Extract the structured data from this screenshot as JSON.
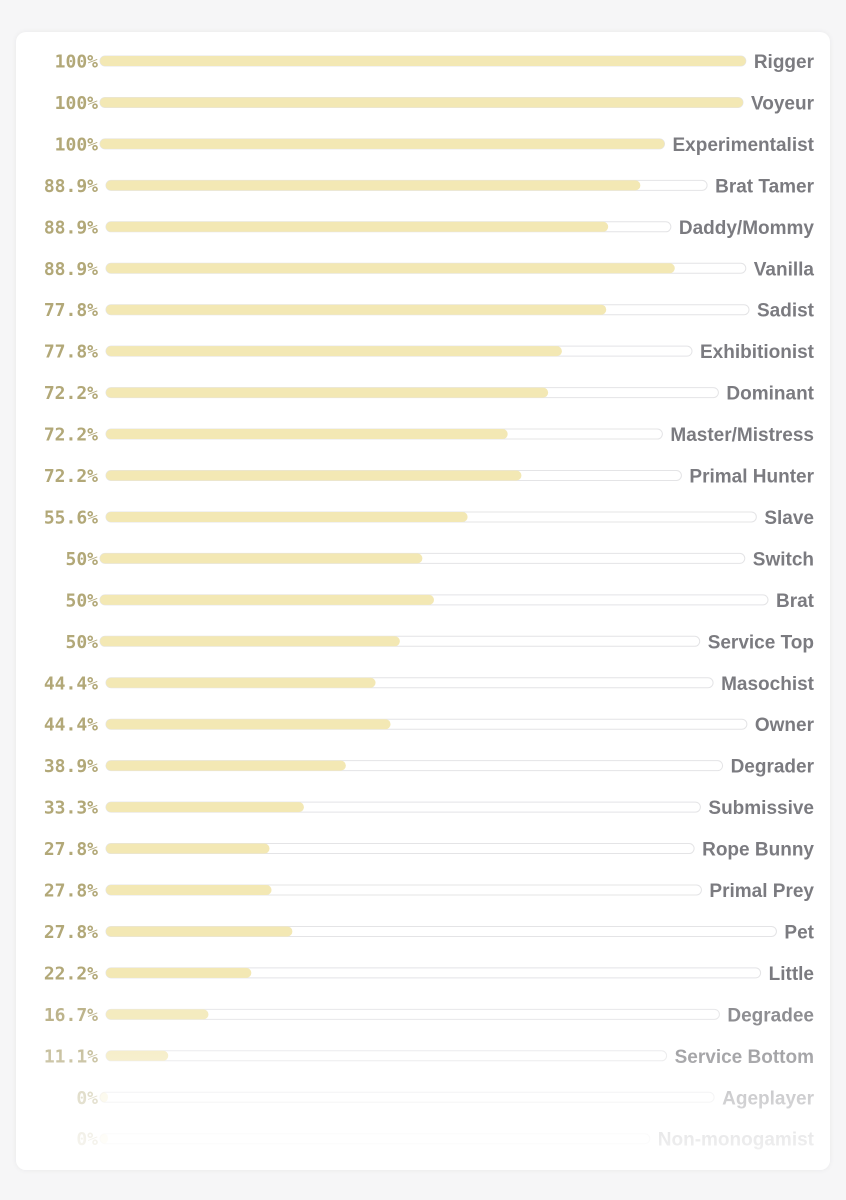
{
  "chart_data": {
    "type": "bar",
    "orientation": "horizontal",
    "value_suffix": "%",
    "xlim": [
      0,
      100
    ],
    "categories": [
      "Rigger",
      "Voyeur",
      "Experimentalist",
      "Brat Tamer",
      "Daddy/Mommy",
      "Vanilla",
      "Sadist",
      "Exhibitionist",
      "Dominant",
      "Master/Mistress",
      "Primal Hunter",
      "Slave",
      "Switch",
      "Brat",
      "Service Top",
      "Masochist",
      "Owner",
      "Degrader",
      "Submissive",
      "Rope Bunny",
      "Primal Prey",
      "Pet",
      "Little",
      "Degradee",
      "Service Bottom",
      "Ageplayer",
      "Non-monogamist"
    ],
    "values": [
      100,
      100,
      100,
      88.9,
      88.9,
      88.9,
      77.8,
      77.8,
      72.2,
      72.2,
      72.2,
      55.6,
      50,
      50,
      50,
      44.4,
      44.4,
      38.9,
      33.3,
      27.8,
      27.8,
      27.8,
      22.2,
      16.7,
      11.1,
      0,
      0
    ],
    "value_labels": [
      "100%",
      "100%",
      "100%",
      "88.9%",
      "88.9%",
      "88.9%",
      "77.8%",
      "77.8%",
      "72.2%",
      "72.2%",
      "72.2%",
      "55.6%",
      "50%",
      "50%",
      "50%",
      "44.4%",
      "44.4%",
      "38.9%",
      "33.3%",
      "27.8%",
      "27.8%",
      "27.8%",
      "22.2%",
      "16.7%",
      "11.1%",
      "0%",
      "0%"
    ],
    "colors": {
      "fill": "#f3e8b4",
      "track": "#ffffff",
      "track_border": "#e4e4e6",
      "value_text": "#b2a878",
      "label_text": "#7b7b80"
    }
  }
}
